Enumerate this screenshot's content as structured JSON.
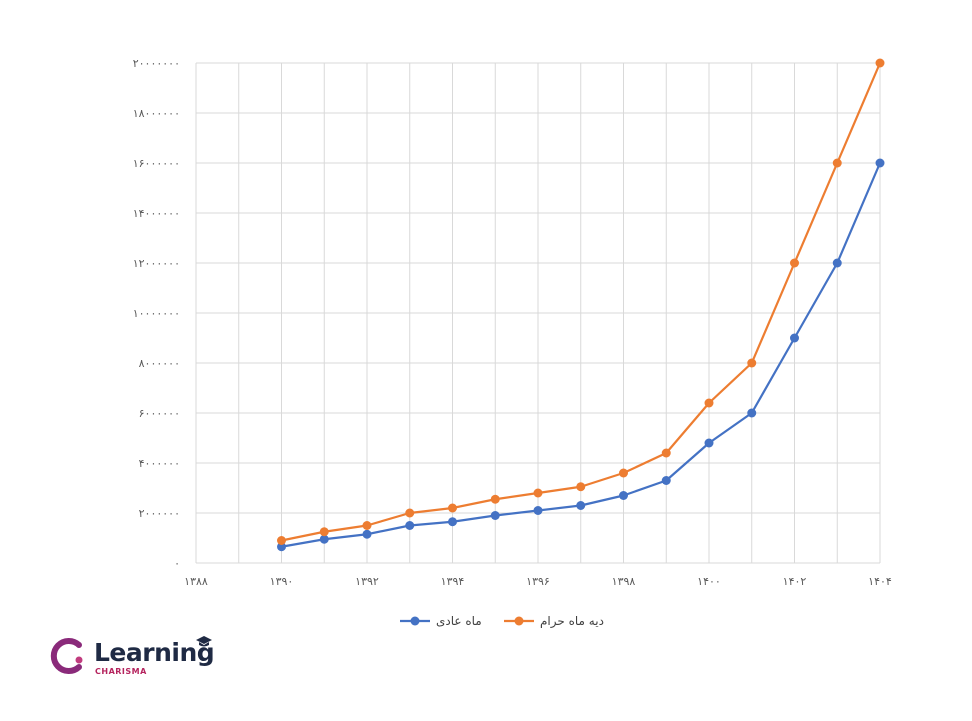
{
  "chart_data": {
    "type": "line",
    "x": [
      1390,
      1391,
      1392,
      1393,
      1394,
      1395,
      1396,
      1397,
      1398,
      1399,
      1400,
      1401,
      1402,
      1403,
      1404
    ],
    "x_tick_labels": [
      "۱۳۸۸",
      "۱۳۹۰",
      "۱۳۹۲",
      "۱۳۹۴",
      "۱۳۹۶",
      "۱۳۹۸",
      "۱۴۰۰",
      "۱۴۰۲",
      "۱۴۰۴"
    ],
    "x_ticks": [
      1388,
      1390,
      1392,
      1394,
      1396,
      1398,
      1400,
      1402,
      1404
    ],
    "xlim": [
      1388,
      1404
    ],
    "ylim": [
      0,
      20000000
    ],
    "y_ticks": [
      0,
      2000000,
      4000000,
      6000000,
      8000000,
      10000000,
      12000000,
      14000000,
      16000000,
      18000000,
      20000000
    ],
    "y_tick_labels": [
      "۰",
      "۲۰۰۰۰۰۰",
      "۴۰۰۰۰۰۰",
      "۶۰۰۰۰۰۰",
      "۸۰۰۰۰۰۰",
      "۱۰۰۰۰۰۰۰",
      "۱۲۰۰۰۰۰۰",
      "۱۴۰۰۰۰۰۰",
      "۱۶۰۰۰۰۰۰",
      "۱۸۰۰۰۰۰۰",
      "۲۰۰۰۰۰۰۰"
    ],
    "series": [
      {
        "name": "ماه عادی",
        "color": "#4472C4",
        "values": [
          650000,
          950000,
          1150000,
          1500000,
          1650000,
          1900000,
          2100000,
          2300000,
          2700000,
          3300000,
          4800000,
          6000000,
          9000000,
          12000000,
          16000000
        ]
      },
      {
        "name": "دیه ماه حرام",
        "color": "#ED7D31",
        "values": [
          900000,
          1250000,
          1500000,
          2000000,
          2200000,
          2550000,
          2800000,
          3050000,
          3600000,
          4400000,
          6400000,
          8000000,
          12000000,
          16000000,
          20000000
        ]
      }
    ],
    "grid": true,
    "legend_position": "bottom"
  },
  "logo": {
    "word": "Learning",
    "sub": "CHARISMA",
    "brand_color": "#8a2a7a",
    "text_color": "#1f2a44"
  }
}
